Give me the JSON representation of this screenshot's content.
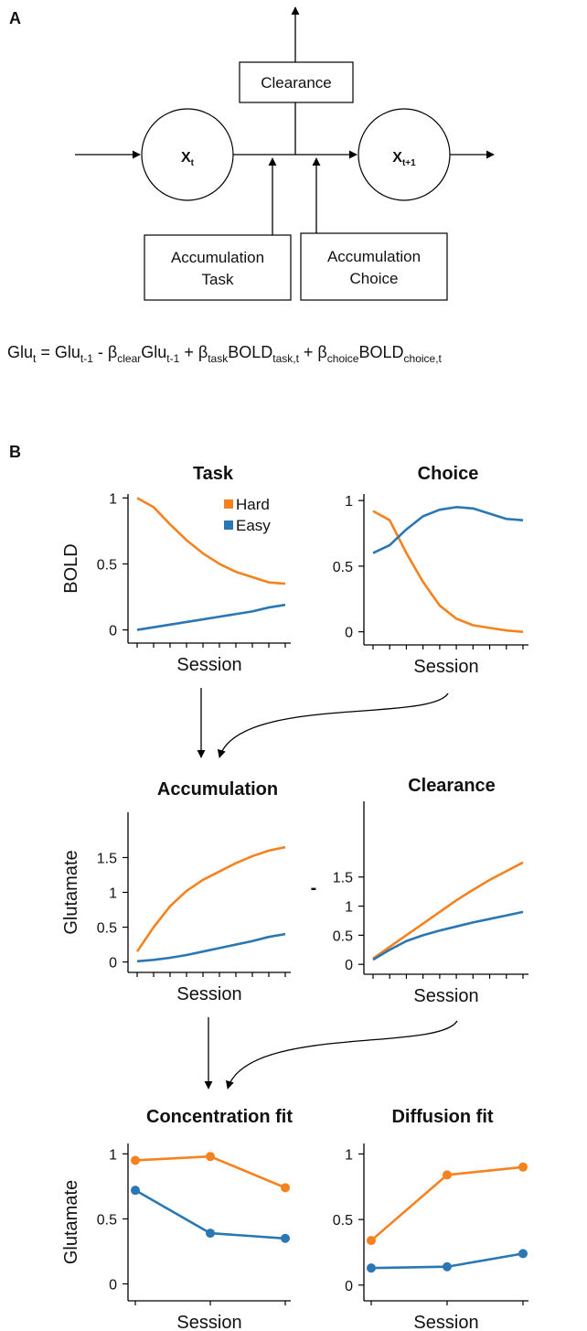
{
  "panel_a": {
    "label": "A",
    "nodes": [
      {
        "base": "X",
        "sub": "t"
      },
      {
        "base": "X",
        "sub": "t+1"
      }
    ],
    "boxes": {
      "clearance": [
        "Clearance"
      ],
      "task": [
        "Accumulation",
        "Task"
      ],
      "choice": [
        "Accumulation",
        "Choice"
      ]
    },
    "equation": [
      {
        "text": "Glu",
        "sub": "t"
      },
      {
        "text": " = Glu",
        "sub": "t-1"
      },
      {
        "text": " - β",
        "sub": "clear"
      },
      {
        "text": "Glu",
        "sub": "t-1"
      },
      {
        "text": " + β",
        "sub": "task"
      },
      {
        "text": "BOLD",
        "sub": "task,t"
      },
      {
        "text": " + β",
        "sub": "choice"
      },
      {
        "text": "BOLD",
        "sub": "choice,t"
      }
    ]
  },
  "panel_b": {
    "label": "B",
    "separator": "-"
  },
  "chart_data": [
    {
      "type": "line",
      "title": "Task",
      "x_label": "Session",
      "y_label": "BOLD",
      "legend": true,
      "categories": [
        null,
        null,
        null,
        null,
        null,
        null,
        null,
        null,
        null,
        null
      ],
      "ylim": [
        -0.1,
        1.03
      ],
      "yticks": [
        0,
        0.5,
        1
      ],
      "series": [
        {
          "name": "Hard",
          "color": "#f5821f",
          "values": [
            1.0,
            0.93,
            0.8,
            0.68,
            0.58,
            0.5,
            0.44,
            0.4,
            0.36,
            0.35
          ]
        },
        {
          "name": "Easy",
          "color": "#2a77b4",
          "values": [
            0,
            0.02,
            0.04,
            0.06,
            0.08,
            0.1,
            0.12,
            0.14,
            0.17,
            0.19
          ]
        }
      ]
    },
    {
      "type": "line",
      "title": "Choice",
      "x_label": "Session",
      "legend": false,
      "categories": [
        null,
        null,
        null,
        null,
        null,
        null,
        null,
        null,
        null,
        null
      ],
      "ylim": [
        -0.1,
        1.05
      ],
      "yticks": [
        0,
        0.5,
        1
      ],
      "series": [
        {
          "color": "#f5821f",
          "values": [
            0.92,
            0.85,
            0.6,
            0.38,
            0.2,
            0.1,
            0.05,
            0.03,
            0.01,
            0.0
          ]
        },
        {
          "color": "#2a77b4",
          "values": [
            0.6,
            0.66,
            0.78,
            0.88,
            0.93,
            0.95,
            0.94,
            0.9,
            0.86,
            0.85
          ]
        }
      ]
    },
    {
      "type": "line",
      "title": "Accumulation",
      "x_label": "Session",
      "y_label": "Glutamate",
      "legend": false,
      "categories": [
        null,
        null,
        null,
        null,
        null,
        null,
        null,
        null,
        null,
        null
      ],
      "ylim": [
        -0.15,
        2.15
      ],
      "yticks": [
        0,
        0.5,
        1,
        1.5
      ],
      "series": [
        {
          "color": "#f5821f",
          "values": [
            0.15,
            0.5,
            0.8,
            1.02,
            1.18,
            1.3,
            1.42,
            1.52,
            1.6,
            1.65
          ]
        },
        {
          "color": "#2a77b4",
          "values": [
            0.01,
            0.03,
            0.06,
            0.1,
            0.15,
            0.2,
            0.25,
            0.3,
            0.36,
            0.4
          ]
        }
      ]
    },
    {
      "type": "line",
      "title": "Clearance",
      "x_label": "Session",
      "legend": false,
      "categories": [
        null,
        null,
        null,
        null,
        null,
        null,
        null,
        null,
        null,
        null
      ],
      "ylim": [
        -0.17,
        2.8
      ],
      "yticks": [
        0,
        0.5,
        1,
        1.5
      ],
      "series": [
        {
          "color": "#f5821f",
          "values": [
            0.1,
            0.3,
            0.5,
            0.7,
            0.9,
            1.1,
            1.28,
            1.45,
            1.6,
            1.75
          ]
        },
        {
          "color": "#2a77b4",
          "values": [
            0.08,
            0.25,
            0.4,
            0.5,
            0.58,
            0.65,
            0.72,
            0.78,
            0.84,
            0.9
          ]
        }
      ]
    },
    {
      "type": "line",
      "title": "Concentration fit",
      "x_label": "Session",
      "y_label": "Glutamate",
      "legend": false,
      "markers": true,
      "categories": [
        null,
        null,
        null
      ],
      "ylim": [
        -0.13,
        1.08
      ],
      "yticks": [
        0,
        0.5,
        1
      ],
      "series": [
        {
          "color": "#f5821f",
          "values": [
            0.95,
            0.98,
            0.74
          ]
        },
        {
          "color": "#2a77b4",
          "values": [
            0.72,
            0.39,
            0.35
          ]
        }
      ]
    },
    {
      "type": "line",
      "title": "Diffusion fit",
      "x_label": "Session",
      "legend": false,
      "markers": true,
      "categories": [
        null,
        null,
        null
      ],
      "ylim": [
        -0.12,
        1.08
      ],
      "yticks": [
        0,
        0.5,
        1
      ],
      "series": [
        {
          "color": "#f5821f",
          "values": [
            0.34,
            0.84,
            0.9
          ]
        },
        {
          "color": "#2a77b4",
          "values": [
            0.13,
            0.14,
            0.24
          ]
        }
      ]
    }
  ]
}
